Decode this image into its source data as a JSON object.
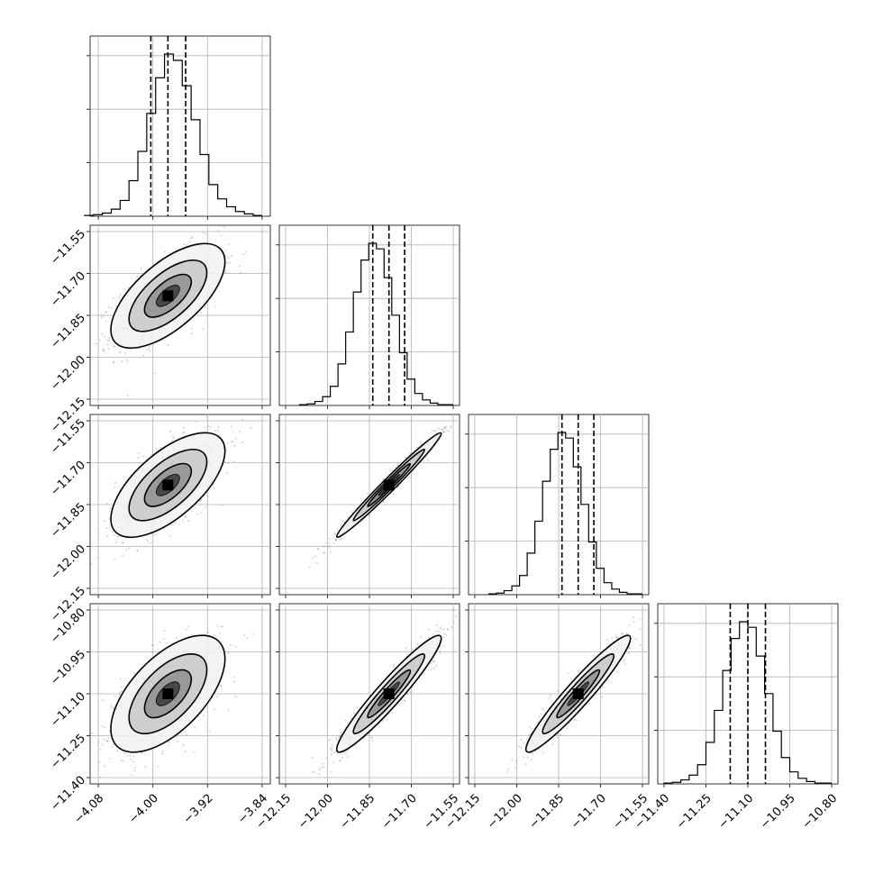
{
  "chart_data": {
    "type": "scatter",
    "subtype": "corner-plot",
    "title": "",
    "grid": true,
    "parameters": [
      {
        "ticks": [
          "-4.08",
          "-4.00",
          "-3.92",
          "-3.84"
        ],
        "median": -3.978,
        "q16": -4.003,
        "q84": -3.952
      },
      {
        "ticks": [
          "-12.15",
          "-12.00",
          "-11.85",
          "-11.70",
          "-11.55"
        ],
        "median": -11.78,
        "q16": -11.838,
        "q84": -11.724
      },
      {
        "ticks": [
          "-12.15",
          "-12.00",
          "-11.85",
          "-11.70",
          "-11.55"
        ],
        "median": -11.78,
        "q16": -11.838,
        "q84": -11.724
      },
      {
        "ticks": [
          "-11.40",
          "-11.25",
          "-11.10",
          "-10.95",
          "-10.80"
        ],
        "median": -11.1,
        "q16": -11.163,
        "q84": -11.037
      }
    ],
    "row_tick_labels": [
      [],
      [
        "-11.55",
        "-11.70",
        "-11.85",
        "-12.00",
        "-12.15"
      ],
      [
        "-11.55",
        "-11.70",
        "-11.85",
        "-12.00",
        "-12.15"
      ],
      [
        "-10.80",
        "-10.95",
        "-11.10",
        "-11.25",
        "-11.40"
      ]
    ],
    "x_tick_labels": [
      [
        "-4.08",
        "-4.00",
        "-3.92",
        "-3.84"
      ],
      [
        "-12.15",
        "-12.00",
        "-11.85",
        "-11.70",
        "-11.55"
      ],
      [
        "-12.15",
        "-12.00",
        "-11.85",
        "-11.70",
        "-11.55"
      ],
      [
        "-11.40",
        "-11.25",
        "-11.10",
        "-10.95",
        "-10.80"
      ]
    ],
    "histograms": [
      {
        "bin_edges_from": -4.1,
        "bin_edges_to": -3.84,
        "counts": [
          1,
          2,
          4,
          9,
          20,
          45,
          82,
          130,
          175,
          205,
          197,
          165,
          122,
          78,
          40,
          22,
          12,
          6,
          3,
          1
        ]
      },
      {
        "bin_edges_from": -12.1,
        "bin_edges_to": -11.55,
        "counts": [
          1,
          2,
          5,
          11,
          24,
          52,
          92,
          142,
          182,
          203,
          196,
          160,
          113,
          66,
          33,
          15,
          7,
          3,
          1,
          1
        ]
      },
      {
        "bin_edges_from": -12.1,
        "bin_edges_to": -11.55,
        "counts": [
          1,
          2,
          5,
          11,
          24,
          52,
          92,
          142,
          182,
          203,
          196,
          160,
          113,
          66,
          33,
          15,
          7,
          3,
          1,
          1
        ]
      },
      {
        "bin_edges_from": -11.4,
        "bin_edges_to": -10.8,
        "counts": [
          1,
          2,
          5,
          11,
          24,
          52,
          92,
          142,
          182,
          203,
          196,
          160,
          113,
          66,
          33,
          15,
          7,
          3,
          1,
          1
        ]
      }
    ],
    "pairs": [
      {
        "row": 1,
        "col": 0,
        "correlation": 0.65,
        "mean": [
          -3.978,
          -11.78
        ],
        "sd": [
          0.038,
          0.085
        ]
      },
      {
        "row": 2,
        "col": 0,
        "correlation": 0.65,
        "mean": [
          -3.978,
          -11.78
        ],
        "sd": [
          0.038,
          0.085
        ]
      },
      {
        "row": 2,
        "col": 1,
        "correlation": 0.985,
        "mean": [
          -11.78,
          -11.78
        ],
        "sd": [
          0.085,
          0.085
        ]
      },
      {
        "row": 3,
        "col": 0,
        "correlation": 0.6,
        "mean": [
          -3.978,
          -11.1
        ],
        "sd": [
          0.038,
          0.095
        ]
      },
      {
        "row": 3,
        "col": 1,
        "correlation": 0.95,
        "mean": [
          -11.78,
          -11.1
        ],
        "sd": [
          0.085,
          0.095
        ]
      },
      {
        "row": 3,
        "col": 2,
        "correlation": 0.95,
        "mean": [
          -11.78,
          -11.1
        ],
        "sd": [
          0.085,
          0.095
        ]
      }
    ]
  }
}
